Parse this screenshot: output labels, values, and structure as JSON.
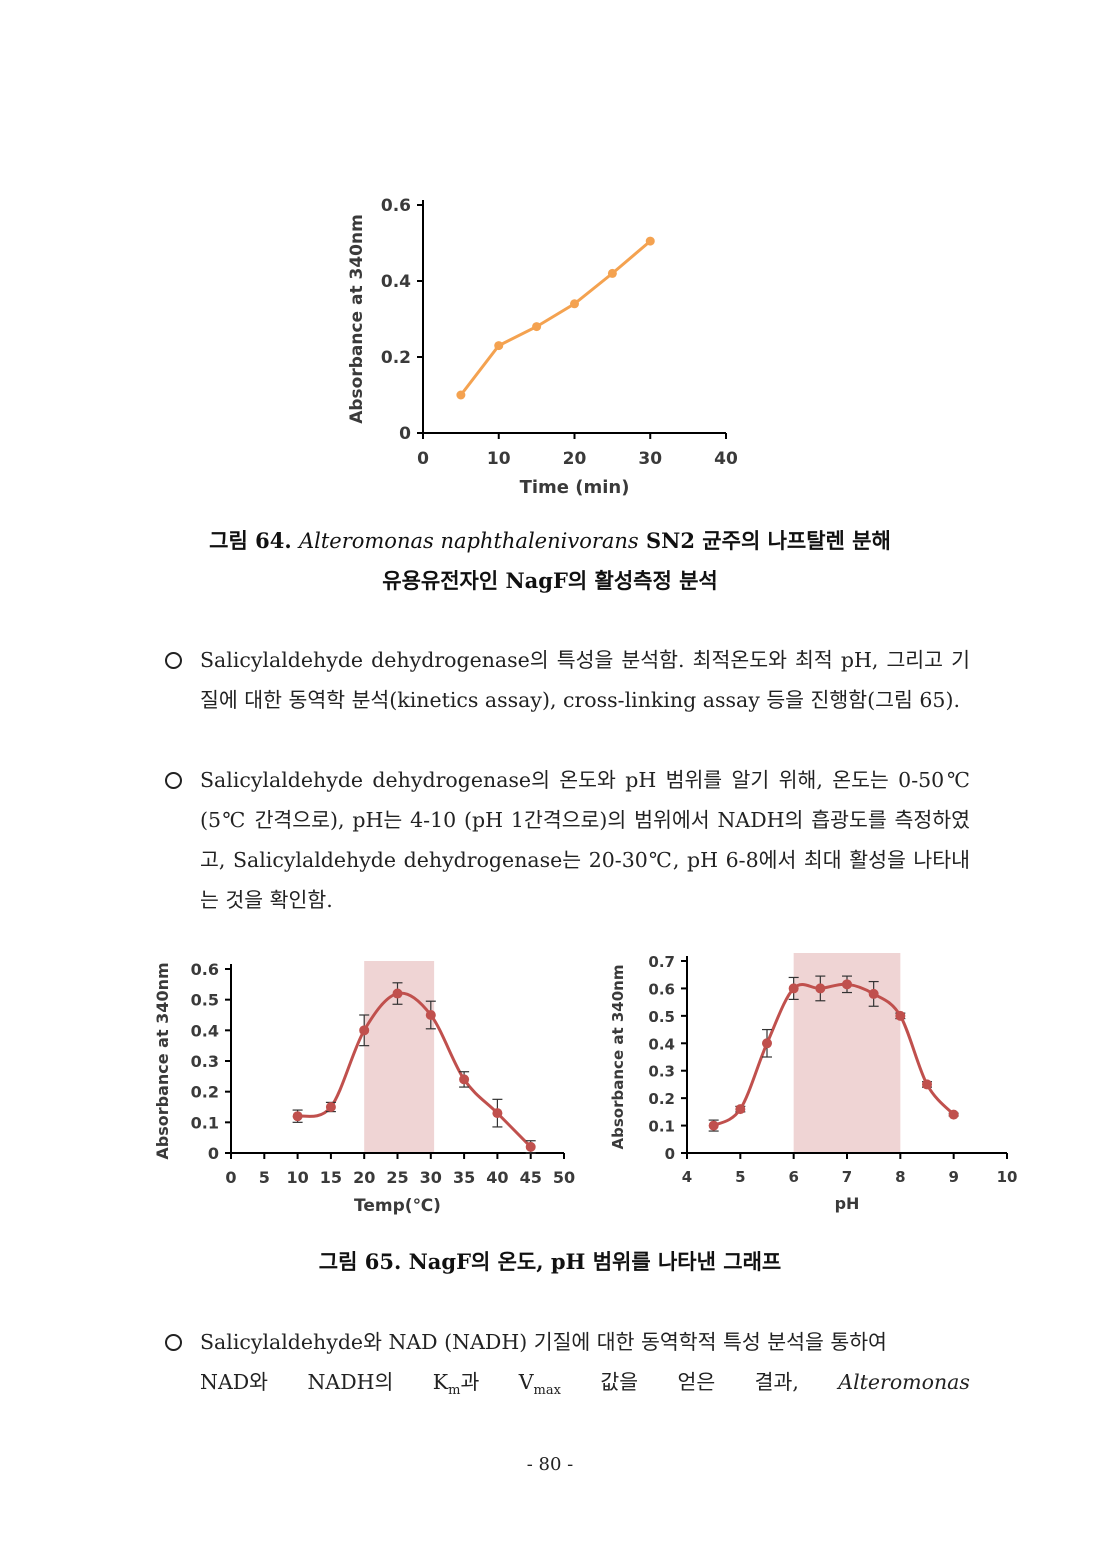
{
  "figure64": {
    "caption": {
      "prefix": "그림 64. ",
      "species": "Alteromonas naphthalenivorans",
      "suffix": " SN2 균주의 나프탈렌 분해",
      "line2": "유용유전자인 NagF의 활성측정 분석"
    }
  },
  "paragraphs": [
    "Salicylaldehyde dehydrogenase의 특성을 분석함. 최적온도와 최적 pH, 그리고 기질에 대한 동역학 분석(kinetics assay), cross-linking assay 등을 진행함(그림 65).",
    "Salicylaldehyde dehydrogenase의 온도와 pH 범위를 알기 위해, 온도는 0-50℃ (5℃ 간격으로), pH는 4-10 (pH 1간격으로)의 범위에서 NADH의 흡광도를 측정하였고, Salicylaldehyde dehydrogenase는 20-30℃, pH 6-8에서 최대 활성을 나타내는 것을 확인함."
  ],
  "figure65": {
    "caption": "그림 65. NagF의 온도, pH 범위를 나타낸 그래프"
  },
  "para3": {
    "line1": "Salicylaldehyde와 NAD (NADH) 기질에 대한 동역학적 특성 분석을 통하여",
    "w1": "NAD와",
    "w2": "NADH의",
    "km_base": "K",
    "km_sub": "m",
    "km_tail": "과",
    "vmax_base": "V",
    "vmax_sub": "max",
    "w4": "값을",
    "w5": "얻은",
    "w6": "결과,",
    "w7": "Alteromonas"
  },
  "page_number": "- 80 -",
  "chart_data": [
    {
      "type": "line",
      "xlabel": "Time (min)",
      "ylabel": "Absorbance at 340nm",
      "xlim": [
        0,
        40
      ],
      "ylim": [
        0,
        0.6
      ],
      "xticks": [
        "0",
        "10",
        "20",
        "30",
        "40"
      ],
      "yticks": [
        "0",
        "0.2",
        "0.4",
        "0.6"
      ],
      "x": [
        5,
        10,
        15,
        20,
        25,
        30
      ],
      "y": [
        0.1,
        0.23,
        0.28,
        0.34,
        0.42,
        0.505
      ],
      "color": "#f4a250"
    },
    {
      "type": "line",
      "xlabel": "Temp(℃)",
      "ylabel": "Absorbance at 340nm",
      "xlim": [
        0,
        50
      ],
      "ylim": [
        0,
        0.6
      ],
      "xticks": [
        "0",
        "5",
        "10",
        "15",
        "20",
        "25",
        "30",
        "35",
        "40",
        "45",
        "50"
      ],
      "yticks": [
        "0",
        "0.1",
        "0.2",
        "0.3",
        "0.4",
        "0.5",
        "0.6"
      ],
      "x": [
        10,
        15,
        20,
        25,
        30,
        35,
        40,
        45
      ],
      "y": [
        0.12,
        0.15,
        0.4,
        0.52,
        0.45,
        0.24,
        0.13,
        0.02
      ],
      "error": [
        0.02,
        0.015,
        0.05,
        0.035,
        0.045,
        0.025,
        0.045,
        0.02
      ],
      "highlight": [
        20,
        30.5
      ],
      "color": "#c0504d",
      "highlight_color": "#efd4d4"
    },
    {
      "type": "line",
      "xlabel": "pH",
      "ylabel": "Absorbance at 340nm",
      "xlim": [
        4,
        10
      ],
      "ylim": [
        0,
        0.7
      ],
      "xticks": [
        "4",
        "5",
        "6",
        "7",
        "8",
        "9",
        "10"
      ],
      "yticks": [
        "0",
        "0.1",
        "0.2",
        "0.3",
        "0.4",
        "0.5",
        "0.6",
        "0.7"
      ],
      "x": [
        4.5,
        5,
        5.5,
        6,
        6.5,
        7,
        7.5,
        8,
        8.5,
        9
      ],
      "y": [
        0.1,
        0.16,
        0.4,
        0.6,
        0.6,
        0.615,
        0.58,
        0.5,
        0.25,
        0.14
      ],
      "error": [
        0.02,
        0.01,
        0.05,
        0.04,
        0.045,
        0.03,
        0.045,
        0.01,
        0.01,
        0.005
      ],
      "highlight": [
        6,
        8
      ],
      "color": "#c0504d",
      "highlight_color": "#efd4d4"
    }
  ]
}
